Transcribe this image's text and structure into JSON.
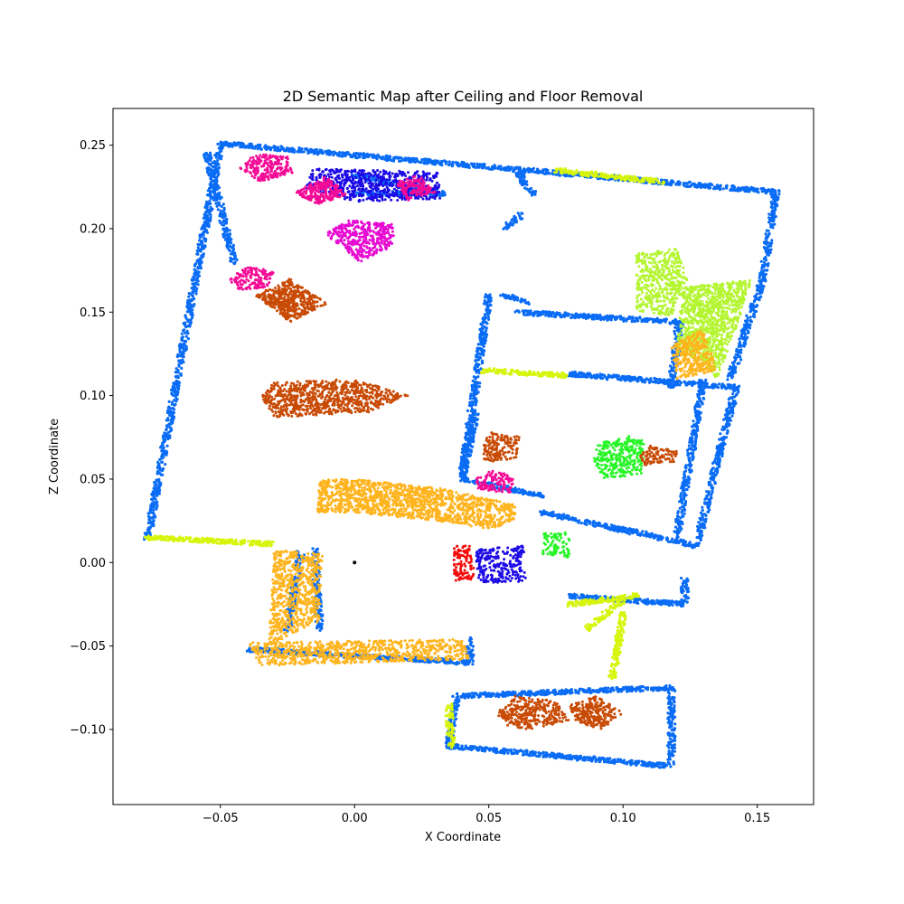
{
  "chart_data": {
    "type": "scatter",
    "title": "2D Semantic Map after Ceiling and Floor Removal",
    "xlabel": "X Coordinate",
    "ylabel": "Z Coordinate",
    "xlim": [
      -0.09,
      0.171
    ],
    "ylim": [
      -0.145,
      0.272
    ],
    "xticks": [
      -0.05,
      0.0,
      0.05,
      0.1,
      0.15
    ],
    "xtick_labels": [
      "−0.05",
      "0.00",
      "0.05",
      "0.10",
      "0.15"
    ],
    "yticks": [
      -0.1,
      -0.05,
      0.0,
      0.05,
      0.1,
      0.15,
      0.2,
      0.25
    ],
    "ytick_labels": [
      "−0.10",
      "−0.05",
      "0.00",
      "0.05",
      "0.10",
      "0.15",
      "0.20",
      "0.25"
    ],
    "grid": false,
    "legend": "none",
    "colors": {
      "wall": "#0a6cf5",
      "yellow_green": "#d6f50a",
      "brown": "#c84a05",
      "orange": "#ffb41e",
      "blue": "#1c0ae6",
      "magenta": "#f50a96",
      "pink_magenta": "#e60ad2",
      "green": "#28f528",
      "cyan": "#19e6e6",
      "red": "#f50a0a",
      "lime": "#b4f532",
      "tan": "#c8966e",
      "black": "#000000"
    },
    "series": [
      {
        "color_key": "wall",
        "kind": "walls",
        "segments": [
          [
            [
              -0.077,
              0.015
            ],
            [
              -0.05,
              0.25
            ]
          ],
          [
            [
              -0.05,
              0.251
            ],
            [
              0.157,
              0.222
            ]
          ],
          [
            [
              0.157,
              0.222
            ],
            [
              0.152,
              0.17
            ]
          ],
          [
            [
              0.152,
              0.17
            ],
            [
              0.14,
              0.11
            ]
          ],
          [
            [
              0.13,
              0.11
            ],
            [
              0.12,
              0.015
            ]
          ],
          [
            [
              0.055,
              0.16
            ],
            [
              0.064,
              0.156
            ]
          ],
          [
            [
              0.06,
              0.15
            ],
            [
              0.121,
              0.144
            ]
          ],
          [
            [
              0.121,
              0.144
            ],
            [
              0.118,
              0.105
            ]
          ],
          [
            [
              0.08,
              0.113
            ],
            [
              0.142,
              0.105
            ]
          ],
          [
            [
              0.142,
              0.105
            ],
            [
              0.128,
              0.014
            ]
          ],
          [
            [
              0.05,
              0.16
            ],
            [
              0.04,
              0.05
            ]
          ],
          [
            [
              0.04,
              0.05
            ],
            [
              0.07,
              0.04
            ]
          ],
          [
            [
              0.07,
              0.03
            ],
            [
              0.128,
              0.01
            ]
          ],
          [
            [
              0.08,
              -0.02
            ],
            [
              0.123,
              -0.025
            ]
          ],
          [
            [
              0.123,
              -0.01
            ],
            [
              0.123,
              -0.025
            ]
          ],
          [
            [
              -0.04,
              -0.052
            ],
            [
              0.043,
              -0.06
            ]
          ],
          [
            [
              0.043,
              -0.06
            ],
            [
              0.043,
              -0.045
            ]
          ],
          [
            [
              0.038,
              -0.08
            ],
            [
              0.118,
              -0.075
            ]
          ],
          [
            [
              0.118,
              -0.075
            ],
            [
              0.118,
              -0.12
            ]
          ],
          [
            [
              0.035,
              -0.11
            ],
            [
              0.118,
              -0.122
            ]
          ],
          [
            [
              0.035,
              -0.11
            ],
            [
              0.038,
              -0.08
            ]
          ],
          [
            [
              -0.025,
              -0.04
            ],
            [
              -0.02,
              0.007
            ]
          ],
          [
            [
              -0.015,
              0.008
            ],
            [
              -0.013,
              -0.04
            ]
          ],
          [
            [
              -0.055,
              0.245
            ],
            [
              -0.045,
              0.18
            ]
          ],
          [
            [
              0.06,
              0.235
            ],
            [
              0.067,
              0.22
            ]
          ],
          [
            [
              0.056,
              0.2
            ],
            [
              0.062,
              0.208
            ]
          ],
          [
            [
              0.04,
              0.05
            ],
            [
              0.045,
              0.09
            ]
          ],
          [
            [
              0.0,
              0.232
            ],
            [
              0.033,
              0.221
            ]
          ],
          [
            [
              0.0,
              0.221
            ],
            [
              0.033,
              0.221
            ]
          ]
        ]
      },
      {
        "color_key": "blue",
        "kind": "patch",
        "poly": [
          [
            -0.018,
            0.224
          ],
          [
            -0.016,
            0.236
          ],
          [
            0.031,
            0.234
          ],
          [
            0.032,
            0.218
          ],
          [
            0.0,
            0.216
          ]
        ]
      },
      {
        "color_key": "magenta",
        "kind": "patch",
        "poly": [
          [
            -0.043,
            0.236
          ],
          [
            -0.037,
            0.245
          ],
          [
            -0.025,
            0.243
          ],
          [
            -0.023,
            0.233
          ],
          [
            -0.035,
            0.228
          ]
        ]
      },
      {
        "color_key": "magenta",
        "kind": "patch",
        "poly": [
          [
            -0.022,
            0.222
          ],
          [
            -0.01,
            0.232
          ],
          [
            -0.003,
            0.22
          ],
          [
            -0.015,
            0.214
          ]
        ]
      },
      {
        "color_key": "magenta",
        "kind": "patch",
        "poly": [
          [
            0.015,
            0.228
          ],
          [
            0.024,
            0.232
          ],
          [
            0.03,
            0.222
          ],
          [
            0.02,
            0.217
          ]
        ]
      },
      {
        "color_key": "pink_magenta",
        "kind": "patch",
        "poly": [
          [
            -0.011,
            0.197
          ],
          [
            -0.002,
            0.205
          ],
          [
            0.014,
            0.203
          ],
          [
            0.015,
            0.19
          ],
          [
            0.002,
            0.18
          ]
        ]
      },
      {
        "color_key": "brown",
        "kind": "patch",
        "poly": [
          [
            -0.037,
            0.16
          ],
          [
            -0.024,
            0.17
          ],
          [
            -0.01,
            0.155
          ],
          [
            -0.024,
            0.144
          ]
        ]
      },
      {
        "color_key": "magenta",
        "kind": "patch",
        "poly": [
          [
            -0.047,
            0.17
          ],
          [
            -0.04,
            0.177
          ],
          [
            -0.03,
            0.175
          ],
          [
            -0.032,
            0.165
          ],
          [
            -0.043,
            0.163
          ]
        ]
      },
      {
        "color_key": "brown",
        "kind": "patch",
        "poly": [
          [
            -0.035,
            0.1
          ],
          [
            -0.03,
            0.108
          ],
          [
            0.0,
            0.11
          ],
          [
            0.02,
            0.1
          ],
          [
            0.005,
            0.09
          ],
          [
            -0.03,
            0.087
          ]
        ]
      },
      {
        "color_key": "orange",
        "kind": "patch",
        "poly": [
          [
            -0.013,
            0.05
          ],
          [
            -0.014,
            0.03
          ],
          [
            0.0,
            0.03
          ],
          [
            0.03,
            0.025
          ],
          [
            0.05,
            0.02
          ],
          [
            0.06,
            0.025
          ],
          [
            0.06,
            0.035
          ],
          [
            0.045,
            0.04
          ],
          [
            0.03,
            0.045
          ],
          [
            0.0,
            0.05
          ]
        ]
      },
      {
        "color_key": "orange",
        "kind": "patch",
        "poly": [
          [
            -0.03,
            0.007
          ],
          [
            -0.022,
            0.007
          ],
          [
            -0.012,
            0.005
          ],
          [
            -0.013,
            -0.035
          ],
          [
            -0.02,
            -0.04
          ],
          [
            -0.032,
            -0.05
          ]
        ]
      },
      {
        "color_key": "orange",
        "kind": "patch",
        "poly": [
          [
            -0.04,
            -0.048
          ],
          [
            0.04,
            -0.046
          ],
          [
            0.043,
            -0.058
          ],
          [
            -0.035,
            -0.062
          ]
        ]
      },
      {
        "color_key": "brown",
        "kind": "patch",
        "poly": [
          [
            0.048,
            0.07
          ],
          [
            0.05,
            0.078
          ],
          [
            0.062,
            0.076
          ],
          [
            0.06,
            0.062
          ],
          [
            0.048,
            0.06
          ]
        ]
      },
      {
        "color_key": "magenta",
        "kind": "patch",
        "poly": [
          [
            0.045,
            0.05
          ],
          [
            0.05,
            0.055
          ],
          [
            0.06,
            0.053
          ],
          [
            0.058,
            0.042
          ],
          [
            0.046,
            0.043
          ]
        ]
      },
      {
        "color_key": "green",
        "kind": "patch",
        "poly": [
          [
            0.09,
            0.07
          ],
          [
            0.1,
            0.077
          ],
          [
            0.108,
            0.073
          ],
          [
            0.107,
            0.053
          ],
          [
            0.093,
            0.05
          ],
          [
            0.089,
            0.06
          ]
        ]
      },
      {
        "color_key": "brown",
        "kind": "patch",
        "poly": [
          [
            0.106,
            0.064
          ],
          [
            0.11,
            0.07
          ],
          [
            0.12,
            0.067
          ],
          [
            0.12,
            0.06
          ],
          [
            0.108,
            0.058
          ]
        ]
      },
      {
        "color_key": "lime",
        "kind": "patch",
        "poly": [
          [
            0.122,
            0.165
          ],
          [
            0.14,
            0.168
          ],
          [
            0.148,
            0.17
          ],
          [
            0.142,
            0.14
          ],
          [
            0.135,
            0.11
          ],
          [
            0.13,
            0.12
          ],
          [
            0.12,
            0.125
          ]
        ]
      },
      {
        "color_key": "orange",
        "kind": "patch",
        "poly": [
          [
            0.118,
            0.13
          ],
          [
            0.13,
            0.14
          ],
          [
            0.135,
            0.115
          ],
          [
            0.12,
            0.11
          ]
        ]
      },
      {
        "color_key": "lime",
        "kind": "patch",
        "poly": [
          [
            0.105,
            0.185
          ],
          [
            0.12,
            0.188
          ],
          [
            0.124,
            0.17
          ],
          [
            0.118,
            0.148
          ],
          [
            0.105,
            0.15
          ]
        ]
      },
      {
        "color_key": "red",
        "kind": "patch",
        "poly": [
          [
            0.037,
            0.01
          ],
          [
            0.043,
            0.01
          ],
          [
            0.045,
            -0.01
          ],
          [
            0.037,
            -0.012
          ]
        ]
      },
      {
        "color_key": "blue",
        "kind": "patch",
        "poly": [
          [
            0.045,
            0.008
          ],
          [
            0.063,
            0.01
          ],
          [
            0.064,
            -0.012
          ],
          [
            0.046,
            -0.012
          ]
        ]
      },
      {
        "color_key": "brown",
        "kind": "patch",
        "poly": [
          [
            0.053,
            -0.09
          ],
          [
            0.06,
            -0.08
          ],
          [
            0.075,
            -0.083
          ],
          [
            0.08,
            -0.095
          ],
          [
            0.065,
            -0.1
          ],
          [
            0.055,
            -0.097
          ]
        ]
      },
      {
        "color_key": "brown",
        "kind": "patch",
        "poly": [
          [
            0.08,
            -0.085
          ],
          [
            0.09,
            -0.08
          ],
          [
            0.1,
            -0.09
          ],
          [
            0.092,
            -0.1
          ],
          [
            0.082,
            -0.095
          ]
        ]
      },
      {
        "color_key": "green",
        "kind": "patch",
        "poly": [
          [
            0.07,
            0.018
          ],
          [
            0.08,
            0.018
          ],
          [
            0.08,
            0.003
          ],
          [
            0.07,
            0.005
          ]
        ]
      },
      {
        "color_key": "yellow_green",
        "kind": "walls",
        "segments": [
          [
            [
              -0.077,
              0.015
            ],
            [
              -0.03,
              0.011
            ]
          ],
          [
            [
              0.075,
              0.235
            ],
            [
              0.115,
              0.228
            ]
          ],
          [
            [
              0.048,
              0.115
            ],
            [
              0.08,
              0.112
            ]
          ],
          [
            [
              0.035,
              -0.085
            ],
            [
              0.036,
              -0.11
            ]
          ],
          [
            [
              0.087,
              -0.04
            ],
            [
              0.1,
              -0.022
            ]
          ],
          [
            [
              0.096,
              -0.07
            ],
            [
              0.1,
              -0.03
            ]
          ],
          [
            [
              0.08,
              -0.025
            ],
            [
              0.105,
              -0.02
            ]
          ]
        ]
      },
      {
        "color_key": "black",
        "kind": "point",
        "x": 0.0,
        "y": 0.0
      }
    ]
  }
}
